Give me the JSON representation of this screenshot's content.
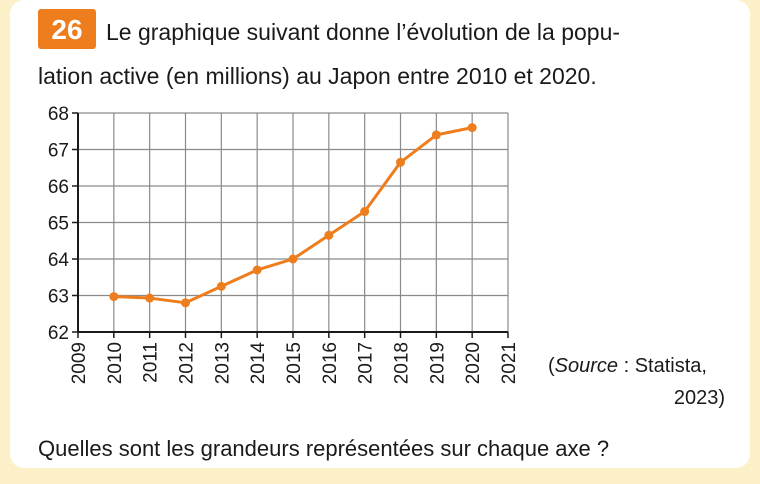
{
  "exercise": {
    "number": "26",
    "statement": [
      "Le graphique suivant donne l’évolution de la popu-",
      "lation active (en millions) au Japon entre 2010 et 2020."
    ],
    "source": {
      "open": "(",
      "label": "Source",
      "text": " : Statista,",
      "year": "2023)"
    },
    "question": "Quelles sont les grandeurs représentées sur chaque axe ?"
  },
  "chart_data": {
    "type": "line",
    "x": [
      2010,
      2011,
      2012,
      2013,
      2014,
      2015,
      2016,
      2017,
      2018,
      2019,
      2020
    ],
    "values": [
      62.97,
      62.93,
      62.8,
      63.25,
      63.7,
      64.0,
      64.65,
      65.3,
      66.65,
      67.4,
      67.6
    ],
    "color": "#ee7d1e",
    "xlim": [
      2009,
      2021
    ],
    "xticks": [
      2009,
      2010,
      2011,
      2012,
      2013,
      2014,
      2015,
      2016,
      2017,
      2018,
      2019,
      2020,
      2021
    ],
    "ylim": [
      62,
      68
    ],
    "yticks": [
      62,
      63,
      64,
      65,
      66,
      67,
      68
    ],
    "grid": true
  }
}
